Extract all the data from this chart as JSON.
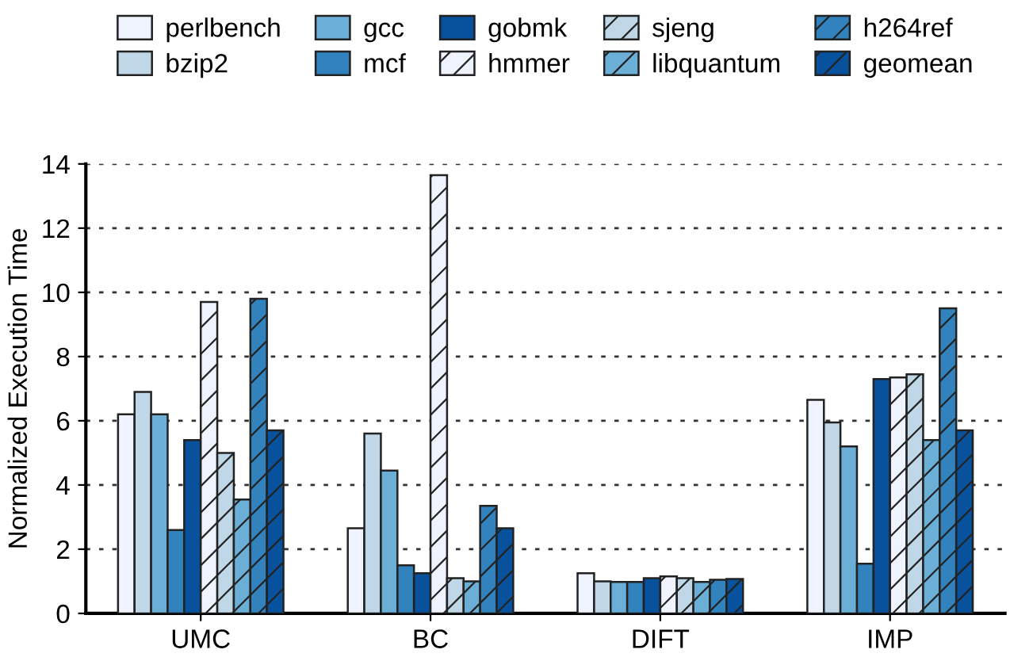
{
  "chart_data": {
    "type": "bar",
    "ylabel": "Normalized Execution Time",
    "categories": [
      "UMC",
      "BC",
      "DIFT",
      "IMP"
    ],
    "series": [
      {
        "name": "perlbench",
        "color": "#eef3fd",
        "values": [
          6.2,
          2.65,
          1.25,
          6.65
        ]
      },
      {
        "name": "bzip2",
        "color": "#bfd7e6",
        "values": [
          6.9,
          5.6,
          1.0,
          5.95
        ]
      },
      {
        "name": "gcc",
        "color": "#6baed6",
        "values": [
          6.2,
          4.45,
          0.98,
          5.2
        ]
      },
      {
        "name": "mcf",
        "color": "#3182bd",
        "values": [
          2.6,
          1.5,
          0.98,
          1.55
        ]
      },
      {
        "name": "gobmk",
        "color": "#08519c",
        "values": [
          5.4,
          1.25,
          1.1,
          7.3
        ]
      },
      {
        "name": "hmmer",
        "color": "#eef3fd",
        "values": [
          9.7,
          13.65,
          1.15,
          7.35
        ]
      },
      {
        "name": "sjeng",
        "color": "#bfd7e6",
        "values": [
          5.0,
          1.1,
          1.1,
          7.45
        ]
      },
      {
        "name": "libquantum",
        "color": "#6baed6",
        "values": [
          3.55,
          1.0,
          0.98,
          5.4
        ]
      },
      {
        "name": "h264ref",
        "color": "#3182bd",
        "values": [
          9.8,
          3.35,
          1.05,
          9.5
        ]
      },
      {
        "name": "geomean",
        "color": "#08519c",
        "values": [
          5.7,
          2.65,
          1.07,
          5.7
        ]
      }
    ],
    "ylim": [
      0,
      14
    ],
    "yticks": [
      0,
      2,
      4,
      6,
      8,
      10,
      12,
      14
    ],
    "grid": "y",
    "legend": "top"
  }
}
